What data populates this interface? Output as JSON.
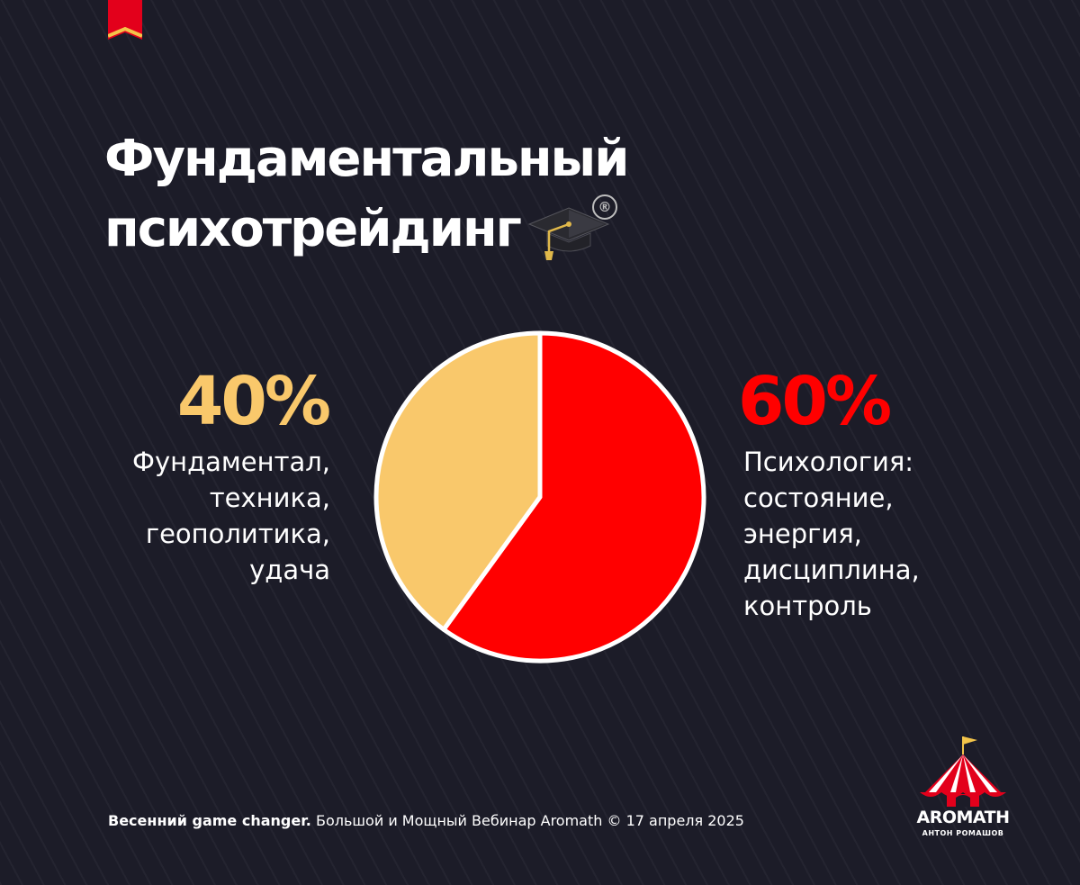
{
  "title": {
    "line1": "Фундаментальный",
    "line2": "психотрейдинг",
    "registered_mark": "®",
    "icon": "graduation-cap-icon"
  },
  "chart_data": {
    "type": "pie",
    "slices": [
      {
        "value": 60,
        "percent_label": "60%",
        "description": [
          "Психология:",
          "состояние,",
          "энергия,",
          "дисциплина,",
          "контроль"
        ],
        "color": "#ff0000"
      },
      {
        "value": 40,
        "percent_label": "40%",
        "description": [
          "Фундаментал,",
          "техника,",
          "геополитика,",
          "удача"
        ],
        "color": "#f9c86b"
      }
    ]
  },
  "footer": {
    "bold": "Весенний game changer.",
    "text": " Большой и Мощный Вебинар Aromath © 17 апреля 2025"
  },
  "logo": {
    "name": "AROMATH",
    "subtitle": "АНТОН РОМАШОВ",
    "icon": "circus-tent-icon"
  },
  "colors": {
    "background": "#1c1c28",
    "accent_red": "#ff0000",
    "accent_yellow": "#f9c86b",
    "bookmark": "#e3001b"
  }
}
